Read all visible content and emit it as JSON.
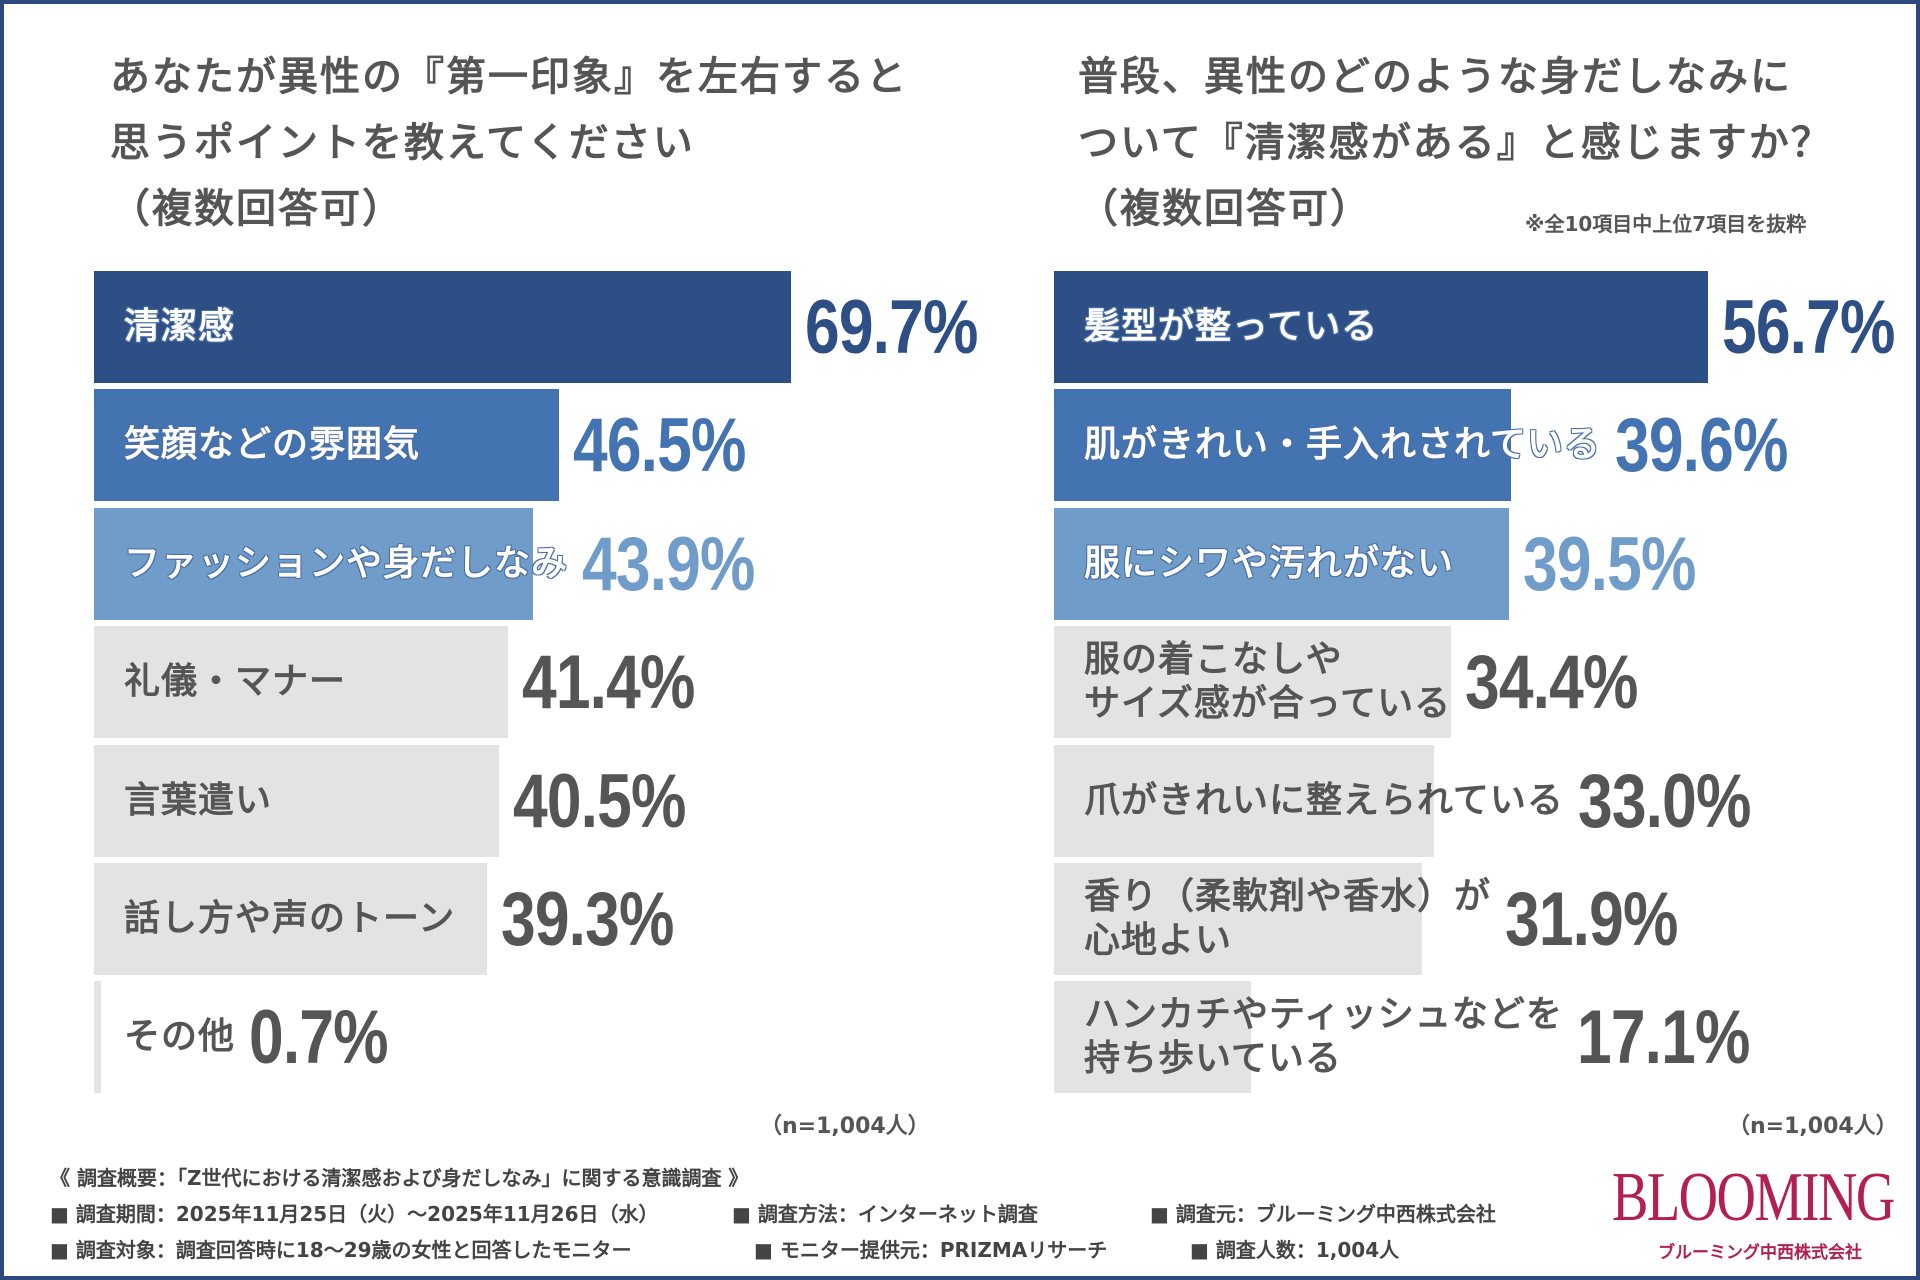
{
  "chart_data": [
    {
      "type": "bar",
      "orientation": "horizontal",
      "title": "あなたが異性の『第一印象』を左右すると\n思うポイントを教えてください\n（複数回答可）",
      "categories": [
        "清潔感",
        "笑顔などの雰囲気",
        "ファッションや身だしなみ",
        "礼儀・マナー",
        "言葉遣い",
        "話し方や声のトーン",
        "その他"
      ],
      "values": [
        69.7,
        46.5,
        43.9,
        41.4,
        40.5,
        39.3,
        0.7
      ],
      "value_labels": [
        "69.7%",
        "46.5%",
        "43.9%",
        "41.4%",
        "40.5%",
        "39.3%",
        "0.7%"
      ],
      "bar_colors": [
        "#2e4e86",
        "#4373b0",
        "#6f9cc9",
        "#e3e3e3",
        "#e3e3e3",
        "#e3e3e3",
        "#e3e3e3"
      ],
      "sample": "（n=1,004人）"
    },
    {
      "type": "bar",
      "orientation": "horizontal",
      "title": "普段、異性のどのような身だしなみに\nついて『清潔感がある』と感じますか？\n（複数回答可）",
      "note": "※全10項目中上位7項目を抜粋",
      "categories": [
        "髪型が整っている",
        "肌がきれい・手入れされている",
        "服にシワや汚れがない",
        "服の着こなしや\nサイズ感が合っている",
        "爪がきれいに整えられている",
        "香り（柔軟剤や香水）が\n心地よい",
        "ハンカチやティッシュなどを\n持ち歩いている"
      ],
      "values": [
        56.7,
        39.6,
        39.5,
        34.4,
        33.0,
        31.9,
        17.1
      ],
      "value_labels": [
        "56.7%",
        "39.6%",
        "39.5%",
        "34.4%",
        "33.0%",
        "31.9%",
        "17.1%"
      ],
      "bar_colors": [
        "#2e4e86",
        "#4373b0",
        "#6f9cc9",
        "#e3e3e3",
        "#e3e3e3",
        "#e3e3e3",
        "#e3e3e3"
      ],
      "sample": "（n=1,004人）"
    }
  ],
  "footer": {
    "overview": "《 調査概要：「Z世代における清潔感および身だしなみ」に関する意識調査 》",
    "period": "■ 調査期間：2025年11月25日（火）～2025年11月26日（水）",
    "method": "■ 調査方法：インターネット調査",
    "source": "■ 調査元：ブルーミング中西株式会社",
    "target": "■ 調査対象：調査回答時に18～29歳の女性と回答したモニター",
    "provider": "■ モニター提供元：PRIZMAリサーチ",
    "count": "■ 調査人数：1,004人"
  },
  "logo": {
    "text": "BLOOMING",
    "sub": "ブルーミング中西株式会社",
    "color": "#b3204f"
  },
  "colors": {
    "frame": "#2c4a80",
    "text_grey": "#555555"
  }
}
